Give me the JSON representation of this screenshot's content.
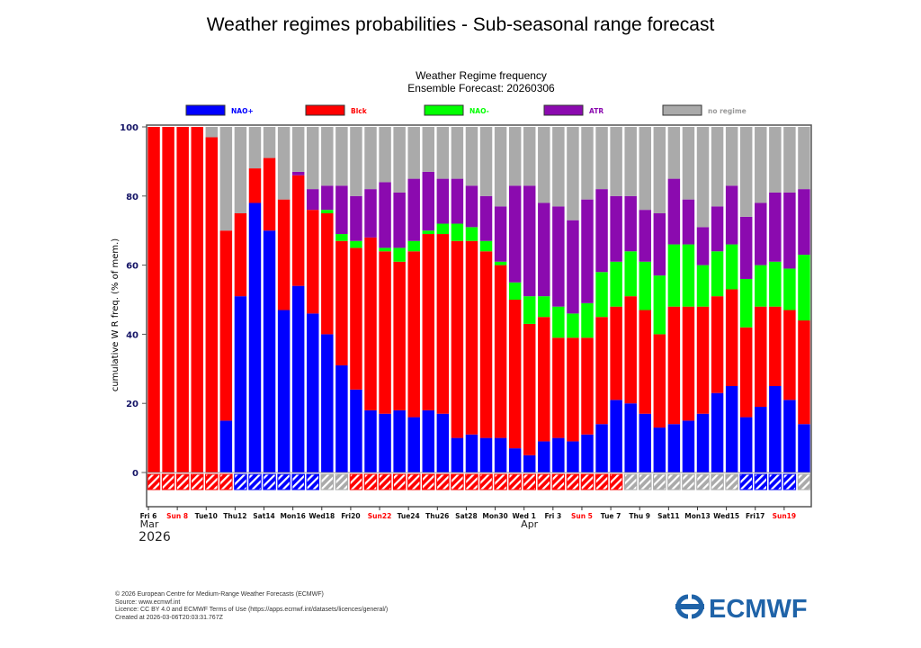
{
  "title": "Weather regimes probabilities - Sub-seasonal range forecast",
  "chart_data": {
    "type": "bar",
    "stacked": true,
    "title": "Weather Regime frequency",
    "subtitle": "Ensemble Forecast: 20260306",
    "ylabel": "cumulative W R freq. (% of mem.)",
    "xlabel": "",
    "ylim": [
      0,
      100
    ],
    "yticks": [
      0,
      20,
      40,
      60,
      80,
      100
    ],
    "legend_position": "top",
    "categories": [
      "2026-03-06",
      "2026-03-07",
      "2026-03-08",
      "2026-03-09",
      "2026-03-10",
      "2026-03-11",
      "2026-03-12",
      "2026-03-13",
      "2026-03-14",
      "2026-03-15",
      "2026-03-16",
      "2026-03-17",
      "2026-03-18",
      "2026-03-19",
      "2026-03-20",
      "2026-03-21",
      "2026-03-22",
      "2026-03-23",
      "2026-03-24",
      "2026-03-25",
      "2026-03-26",
      "2026-03-27",
      "2026-03-28",
      "2026-03-29",
      "2026-03-30",
      "2026-03-31",
      "2026-04-01",
      "2026-04-02",
      "2026-04-03",
      "2026-04-04",
      "2026-04-05",
      "2026-04-06",
      "2026-04-07",
      "2026-04-08",
      "2026-04-09",
      "2026-04-10",
      "2026-04-11",
      "2026-04-12",
      "2026-04-13",
      "2026-04-14",
      "2026-04-15",
      "2026-04-16",
      "2026-04-17",
      "2026-04-18",
      "2026-04-19",
      "2026-04-20"
    ],
    "series": [
      {
        "name": "NAO+",
        "key": "nao_plus",
        "color": "#0000ff",
        "values": [
          0,
          0,
          0,
          0,
          0,
          15,
          51,
          78,
          70,
          47,
          54,
          46,
          40,
          31,
          24,
          18,
          17,
          18,
          16,
          18,
          17,
          10,
          11,
          10,
          10,
          7,
          5,
          9,
          10,
          9,
          11,
          14,
          21,
          20,
          17,
          13,
          14,
          15,
          17,
          23,
          25,
          16,
          19,
          25,
          21,
          14
        ]
      },
      {
        "name": "Blck",
        "key": "blck",
        "color": "#ff0000",
        "values": [
          100,
          100,
          100,
          100,
          97,
          55,
          24,
          10,
          21,
          32,
          32,
          30,
          35,
          36,
          41,
          50,
          47,
          43,
          48,
          51,
          52,
          57,
          56,
          54,
          50,
          43,
          38,
          36,
          29,
          30,
          28,
          31,
          27,
          31,
          30,
          27,
          34,
          33,
          31,
          28,
          28,
          26,
          29,
          23,
          26,
          30
        ]
      },
      {
        "name": "NAO-",
        "key": "nao_minus",
        "color": "#00ff00",
        "values": [
          0,
          0,
          0,
          0,
          0,
          0,
          0,
          0,
          0,
          0,
          0,
          0,
          1,
          2,
          2,
          0,
          1,
          4,
          3,
          1,
          3,
          5,
          4,
          3,
          1,
          5,
          8,
          6,
          9,
          7,
          10,
          13,
          13,
          13,
          14,
          17,
          18,
          18,
          12,
          13,
          13,
          14,
          12,
          13,
          12,
          19
        ]
      },
      {
        "name": "ATR",
        "key": "atr",
        "color": "#8b0aaf",
        "values": [
          0,
          0,
          0,
          0,
          0,
          0,
          0,
          0,
          0,
          0,
          1,
          6,
          7,
          14,
          13,
          14,
          19,
          16,
          18,
          17,
          13,
          13,
          12,
          13,
          16,
          28,
          32,
          27,
          29,
          27,
          30,
          24,
          19,
          16,
          15,
          18,
          19,
          13,
          11,
          13,
          17,
          18,
          18,
          20,
          22,
          19
        ]
      },
      {
        "name": "no regime",
        "key": "none",
        "color": "#aaaaaa",
        "values": [
          0,
          0,
          0,
          0,
          3,
          30,
          25,
          12,
          9,
          21,
          13,
          18,
          17,
          17,
          20,
          18,
          16,
          19,
          15,
          13,
          15,
          15,
          17,
          20,
          23,
          17,
          17,
          22,
          23,
          27,
          21,
          18,
          20,
          20,
          24,
          25,
          15,
          21,
          29,
          23,
          17,
          26,
          22,
          19,
          19,
          18
        ]
      }
    ],
    "dominant_regime": [
      "blck",
      "blck",
      "blck",
      "blck",
      "blck",
      "blck",
      "nao_plus",
      "nao_plus",
      "nao_plus",
      "nao_plus",
      "nao_plus",
      "nao_plus",
      "none",
      "none",
      "blck",
      "blck",
      "blck",
      "blck",
      "blck",
      "blck",
      "blck",
      "blck",
      "blck",
      "blck",
      "blck",
      "blck",
      "blck",
      "blck",
      "blck",
      "blck",
      "blck",
      "blck",
      "blck",
      "none",
      "none",
      "none",
      "none",
      "none",
      "none",
      "none",
      "none",
      "nao_plus",
      "nao_plus",
      "nao_plus",
      "nao_plus",
      "none"
    ],
    "xtick_labels": [
      {
        "label": "Fri 6",
        "sunday": false
      },
      {
        "label": "Sun 8",
        "sunday": true
      },
      {
        "label": "Tue10",
        "sunday": false
      },
      {
        "label": "Thu12",
        "sunday": false
      },
      {
        "label": "Sat14",
        "sunday": false
      },
      {
        "label": "Mon16",
        "sunday": false
      },
      {
        "label": "Wed18",
        "sunday": false
      },
      {
        "label": "Fri20",
        "sunday": false
      },
      {
        "label": "Sun22",
        "sunday": true
      },
      {
        "label": "Tue24",
        "sunday": false
      },
      {
        "label": "Thu26",
        "sunday": false
      },
      {
        "label": "Sat28",
        "sunday": false
      },
      {
        "label": "Mon30",
        "sunday": false
      },
      {
        "label": "Wed 1",
        "sunday": false
      },
      {
        "label": "Fri 3",
        "sunday": false
      },
      {
        "label": "Sun 5",
        "sunday": true
      },
      {
        "label": "Tue 7",
        "sunday": false
      },
      {
        "label": "Thu 9",
        "sunday": false
      },
      {
        "label": "Sat11",
        "sunday": false
      },
      {
        "label": "Mon13",
        "sunday": false
      },
      {
        "label": "Wed15",
        "sunday": false
      },
      {
        "label": "Fri17",
        "sunday": false
      },
      {
        "label": "Sun19",
        "sunday": true
      }
    ],
    "month_labels": [
      {
        "label": "Mar",
        "year": "2026"
      },
      {
        "label": "Apr",
        "year": ""
      }
    ]
  },
  "footer": {
    "copyright": "© 2026 European Centre for Medium-Range Weather Forecasts (ECMWF)",
    "source": "Source: www.ecmwf.int",
    "licence": "Licence: CC BY 4.0 and ECMWF Terms of Use (https://apps.ecmwf.int/datasets/licences/general/)",
    "created": "Created at 2026-03-06T20:03:31.767Z"
  },
  "logo": {
    "text": "ECMWF",
    "color": "#1f63a8"
  }
}
